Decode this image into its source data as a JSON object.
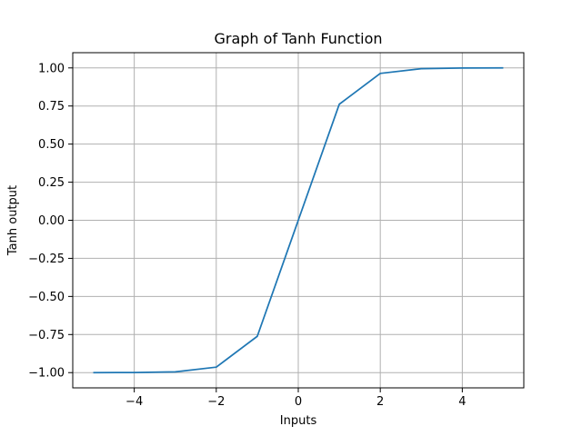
{
  "chart_data": {
    "type": "line",
    "title": "Graph of Tanh Function",
    "xlabel": "Inputs",
    "ylabel": "Tanh output",
    "xlim": [
      -5.5,
      5.5
    ],
    "ylim": [
      -1.1,
      1.1
    ],
    "grid": true,
    "x_ticks": [
      -4,
      -2,
      0,
      2,
      4
    ],
    "x_tick_labels": [
      "−4",
      "−2",
      "0",
      "2",
      "4"
    ],
    "y_ticks": [
      -1.0,
      -0.75,
      -0.5,
      -0.25,
      0.0,
      0.25,
      0.5,
      0.75,
      1.0
    ],
    "y_tick_labels": [
      "−1.00",
      "−0.75",
      "−0.50",
      "−0.25",
      "0.00",
      "0.25",
      "0.50",
      "0.75",
      "1.00"
    ],
    "series": [
      {
        "color": "#1f77b4",
        "x": [
          -5,
          -4,
          -3,
          -2,
          -1,
          0,
          1,
          2,
          3,
          4,
          5
        ],
        "y": [
          -0.9999,
          -0.9993,
          -0.9951,
          -0.964,
          -0.7616,
          0.0,
          0.7616,
          0.964,
          0.9951,
          0.9993,
          0.9999
        ]
      }
    ]
  }
}
